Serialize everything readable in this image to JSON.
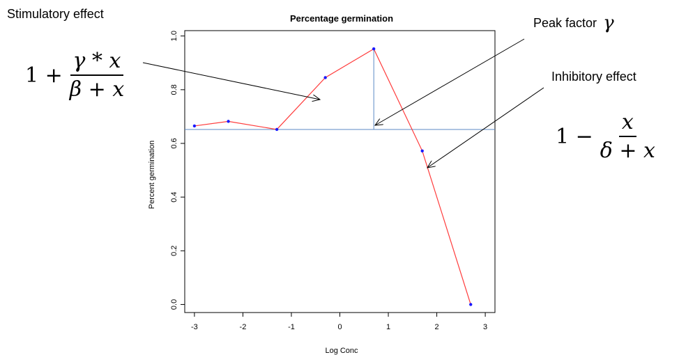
{
  "chart_data": {
    "type": "line",
    "title": "Percentage germination",
    "xlabel": "Log Conc",
    "ylabel": "Percent germination",
    "xlim": [
      -3.2,
      3.2
    ],
    "ylim": [
      -0.03,
      1.02
    ],
    "xticks": [
      "-3",
      "-2",
      "-1",
      "0",
      "1",
      "2",
      "3"
    ],
    "xtick_values": [
      -3,
      -2,
      -1,
      0,
      1,
      2,
      3
    ],
    "yticks": [
      "0.0",
      "0.2",
      "0.4",
      "0.6",
      "0.8",
      "1.0"
    ],
    "ytick_values": [
      0.0,
      0.2,
      0.4,
      0.6,
      0.8,
      1.0
    ],
    "series": [
      {
        "x": [
          -3.0,
          -2.3,
          -1.3,
          -0.3,
          0.7,
          1.7,
          2.7
        ],
        "y": [
          0.665,
          0.682,
          0.652,
          0.845,
          0.952,
          0.572,
          0.0
        ],
        "line_color": "#ff3b3b",
        "marker_color": "#1a1aff"
      }
    ],
    "reference_lines": {
      "horizontal_y": 0.652,
      "vertical_x": 0.7,
      "color": "#5b8ac4"
    },
    "grid": false
  },
  "annotations": {
    "stimulatory": {
      "label": "Stimulatory effect",
      "formula_prefix": "1 +",
      "formula_num": "γ * x",
      "formula_den": "β + x"
    },
    "peak": {
      "label": "Peak factor",
      "symbol": "γ"
    },
    "inhibitory": {
      "label": "Inhibitory  effect",
      "formula_prefix": "1 −",
      "formula_num": "x",
      "formula_den": "δ + x"
    }
  }
}
